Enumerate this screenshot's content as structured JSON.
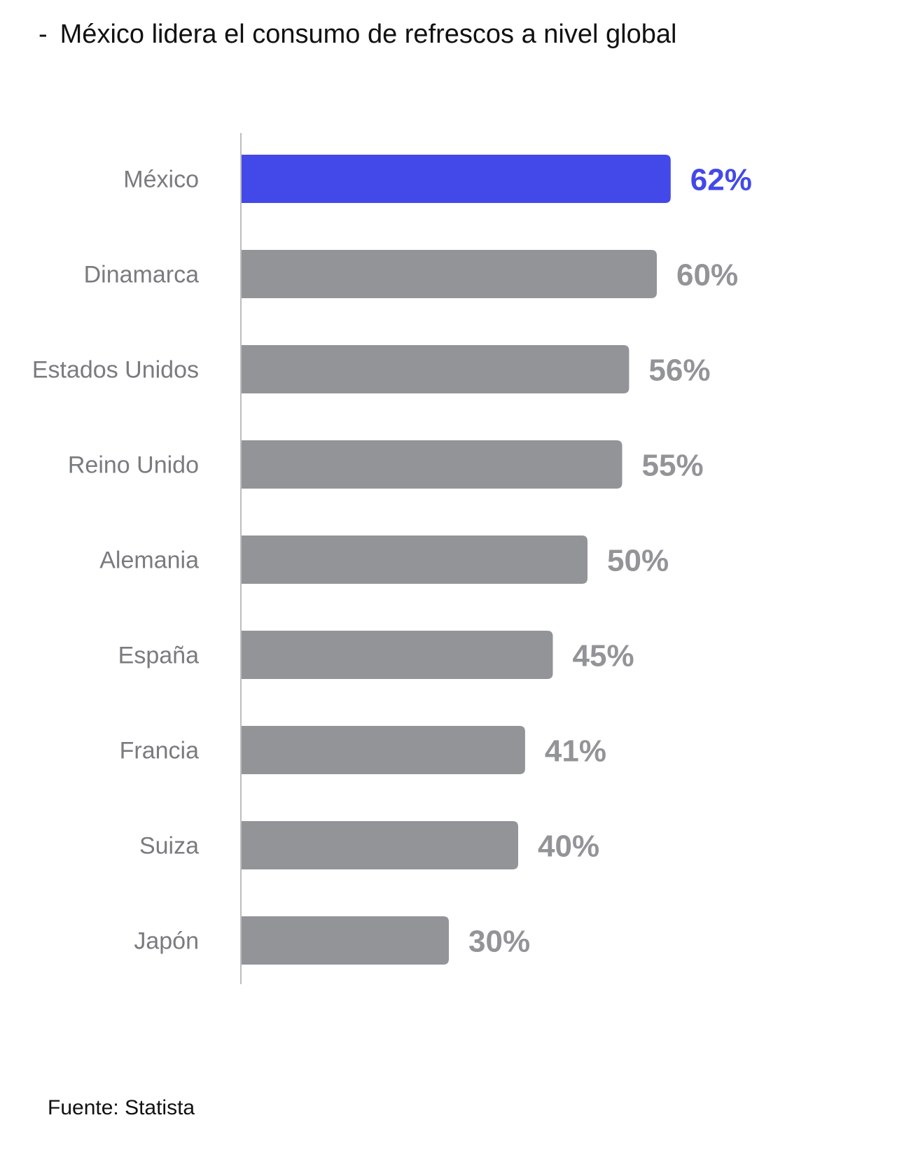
{
  "title": {
    "dash": "-",
    "text": "México lidera el consumo de refrescos a nivel global"
  },
  "source": "Fuente: Statista",
  "colors": {
    "highlight": "#4349E8",
    "bar": "#939498",
    "category_label": "#7a7b7f",
    "axis": "#bdbdbd"
  },
  "chart_data": {
    "type": "bar",
    "orientation": "horizontal",
    "categories": [
      "México",
      "Dinamarca",
      "Estados Unidos",
      "Reino Unido",
      "Alemania",
      "España",
      "Francia",
      "Suiza",
      "Japón"
    ],
    "values": [
      62,
      60,
      56,
      55,
      50,
      45,
      41,
      40,
      30
    ],
    "value_labels": [
      "62%",
      "60%",
      "56%",
      "55%",
      "50%",
      "45%",
      "41%",
      "40%",
      "30%"
    ],
    "highlighted_category": "México",
    "unit": "%",
    "xlim": [
      0,
      100
    ],
    "grid": false,
    "legend": "none"
  }
}
